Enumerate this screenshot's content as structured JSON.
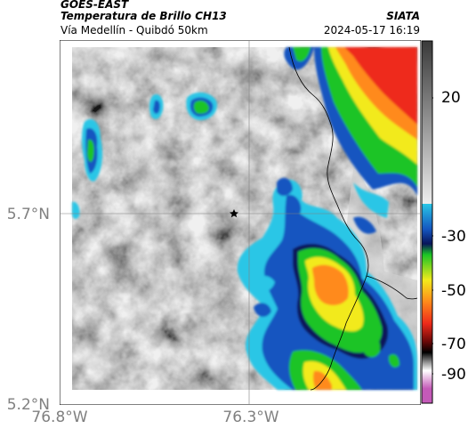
{
  "header": {
    "satellite": "GOES-EAST",
    "product": "Temperatura de Brillo CH13",
    "region": "Vía Medellín - Quibdó 50km",
    "org": "SIATA",
    "datetime": "2024-05-17 16:19"
  },
  "map": {
    "marker": "star-icon",
    "gridline_color": "#808080",
    "lat_ticks": [
      "5.7°N",
      "5.2°N"
    ],
    "lon_ticks": [
      "76.8°W",
      "76.3°W"
    ]
  },
  "colorbar": {
    "ticks": [
      "20",
      "-30",
      "-50",
      "-70",
      "-90"
    ],
    "colors": {
      "warm_gray_top": "#3a3a3a",
      "warm_gray_bottom": "#ededed",
      "cyan": "#29c6e6",
      "blue": "#1555c0",
      "navy": "#08155a",
      "green": "#1ac425",
      "yellow": "#f2ea1c",
      "orange": "#ff8a1a",
      "red": "#ee2a1a",
      "dark_red": "#6a0808",
      "black": "#000000",
      "magenta": "#c45ab8"
    }
  }
}
